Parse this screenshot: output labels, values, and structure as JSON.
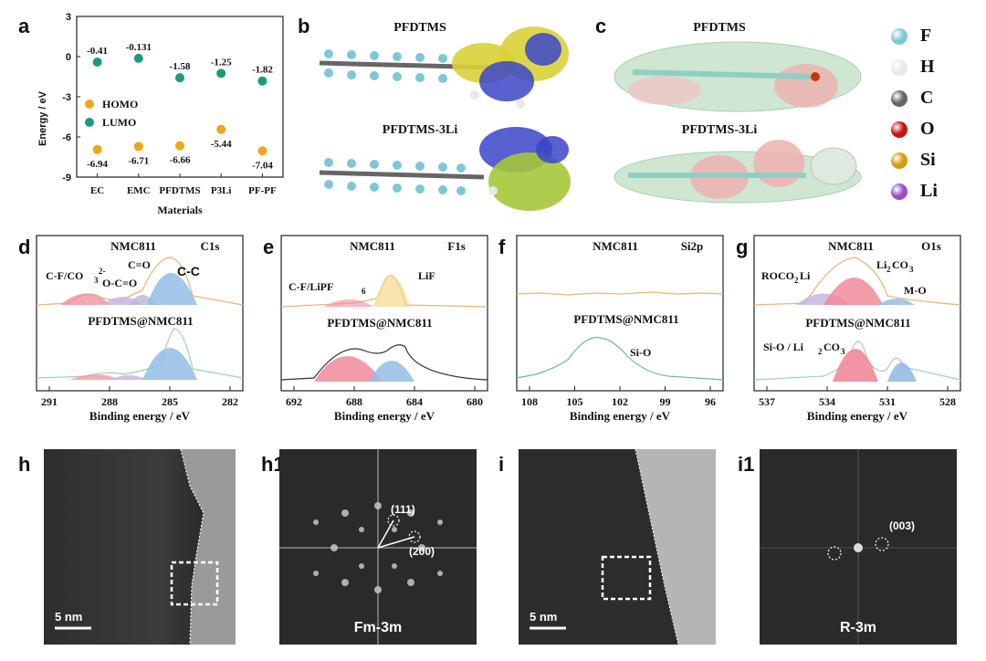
{
  "panel_labels": {
    "a": "a",
    "b": "b",
    "c": "c",
    "d": "d",
    "e": "e",
    "f": "f",
    "g": "g",
    "h": "h",
    "h1": "h1",
    "i": "i",
    "i1": "i1"
  },
  "panel_a": {
    "ylabel": "Energy / eV",
    "xlabel": "Materials",
    "yticks": [
      "3",
      "0",
      "-3",
      "-6",
      "-9"
    ],
    "legend": {
      "homo": "HOMO",
      "lumo": "LUMO"
    },
    "categories": [
      "EC",
      "EMC",
      "PFDTMS",
      "P3Li",
      "PF-PF"
    ],
    "lumo_labels": [
      "-0.41",
      "-0.131",
      "-1.58",
      "-1.25",
      "-1.82"
    ],
    "homo_labels": [
      "-6.94",
      "-6.71",
      "-6.66",
      "-5.44",
      "-7.04"
    ],
    "colors": {
      "homo": "#f2a516",
      "lumo": "#1a9b7e"
    }
  },
  "chart_data": [
    {
      "type": "scatter",
      "categories": [
        "EC",
        "EMC",
        "PFDTMS",
        "P3Li",
        "PF-PF"
      ],
      "series": [
        {
          "name": "HOMO",
          "values": [
            -6.94,
            -6.71,
            -6.66,
            -5.44,
            -7.04
          ]
        },
        {
          "name": "LUMO",
          "values": [
            -0.41,
            -0.131,
            -1.58,
            -1.25,
            -1.82
          ]
        }
      ],
      "xlabel": "Materials",
      "ylabel": "Energy / eV",
      "ylim": [
        -9,
        3
      ]
    }
  ],
  "panel_b": {
    "top_title": "PFDTMS",
    "bottom_title": "PFDTMS-3Li"
  },
  "panel_c": {
    "top_title": "PFDTMS",
    "bottom_title": "PFDTMS-3Li"
  },
  "atom_legend": [
    {
      "symbol": "F",
      "color": "#7ec7d6"
    },
    {
      "symbol": "H",
      "color": "#e8e8e8"
    },
    {
      "symbol": "C",
      "color": "#666666"
    },
    {
      "symbol": "O",
      "color": "#cc1111"
    },
    {
      "symbol": "Si",
      "color": "#d69a10"
    },
    {
      "symbol": "Li",
      "color": "#9b4fc4"
    }
  ],
  "xps": {
    "xlabel": "Binding energy / eV",
    "top_sample": "NMC811",
    "bottom_sample": "PFDTMS@NMC811",
    "d": {
      "region": "C1s",
      "xticks": [
        "291",
        "288",
        "285",
        "282"
      ],
      "peaks": {
        "cf": "C-F/CO",
        "cf_sub": "3",
        "cf_sup": "2-",
        "oco": "O-C=O",
        "co": "C=O",
        "cc": "C-C"
      }
    },
    "e": {
      "region": "F1s",
      "xticks": [
        "692",
        "688",
        "684",
        "680"
      ],
      "peaks": {
        "cf": "C-F/LiPF",
        "cf_sub": "6",
        "lif": "LiF"
      }
    },
    "f": {
      "region": "Si2p",
      "xticks": [
        "108",
        "105",
        "102",
        "99",
        "96"
      ],
      "peaks": {
        "sio": "Si-O"
      }
    },
    "g": {
      "region": "O1s",
      "xticks": [
        "537",
        "534",
        "531",
        "528"
      ],
      "peaks": {
        "roco": "ROCO",
        "roco_sub": "2",
        "roco_tail": "Li",
        "li2co3": "Li",
        "li2co3_sub": "2",
        "li2co3_tail": "CO",
        "li2co3_sub2": "3",
        "mo": "M-O",
        "sio": "Si-O / Li",
        "sio_sub": "2",
        "sio_tail": "CO",
        "sio_sub2": "3"
      }
    }
  },
  "tem": {
    "h_scale": "5 nm",
    "h1_phase": "Fm-3m",
    "h1_spot1": "(111)",
    "h1_spot2": "(200)",
    "i_scale": "5 nm",
    "i1_phase": "R-3m",
    "i1_spot": "(003)"
  }
}
